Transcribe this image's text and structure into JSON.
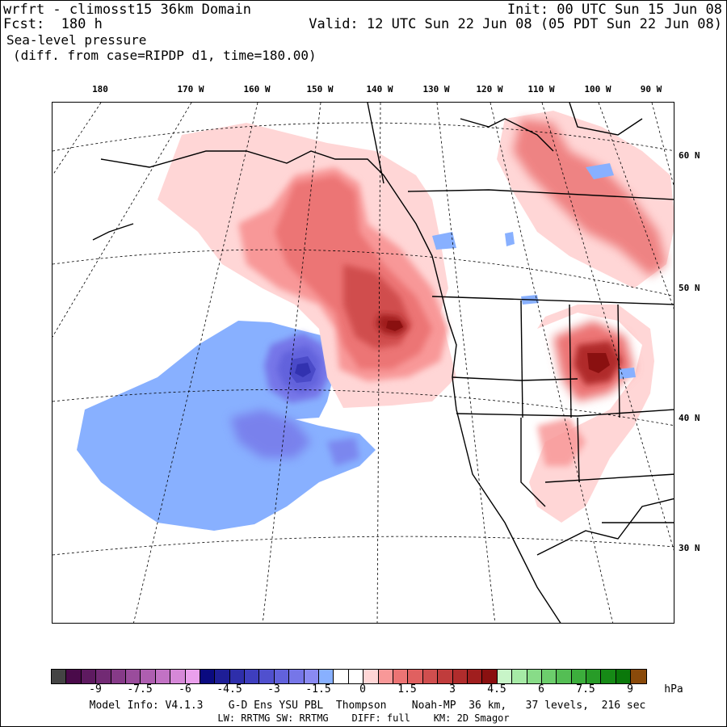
{
  "header": {
    "model_title": "wrfrt - climosst15 36km Domain",
    "init": "Init: 00 UTC Sun 15 Jun 08",
    "fcst": "Fcst:  180 h",
    "valid": "Valid: 12 UTC Sun 22 Jun 08 (05 PDT Sun 22 Jun 08)",
    "field": "Sea-level pressure",
    "diff_note": "(diff. from case=RIPDP d1, time=180.00)"
  },
  "map": {
    "lon_labels": [
      "180",
      "170 W",
      "160 W",
      "150 W",
      "140 W",
      "130 W",
      "120 W",
      "110 W",
      "100 W",
      "90 W"
    ],
    "lat_labels": [
      "60 N",
      "50 N",
      "40 N",
      "30 N"
    ],
    "anomaly_regions": [
      {
        "name": "negative anomaly center NE Pacific",
        "value": -6,
        "units": "hPa"
      },
      {
        "name": "positive anomaly center off Washington coast",
        "value": 4.5,
        "units": "hPa"
      },
      {
        "name": "positive anomaly center northern Rockies",
        "value": 4.5,
        "units": "hPa"
      }
    ]
  },
  "colorbar": {
    "units": "hPa",
    "tick_labels": [
      "-9",
      "-7.5",
      "-6",
      "-4.5",
      "-3",
      "-1.5",
      "0",
      "1.5",
      "3",
      "4.5",
      "6",
      "7.5",
      "9"
    ],
    "colors": [
      "#444444",
      "#4a0a4a",
      "#5e1a60",
      "#722a74",
      "#863a88",
      "#9a4c9c",
      "#ae5eb0",
      "#c272c4",
      "#d688d8",
      "#eaa0ec",
      "#0a0a80",
      "#1e1e96",
      "#2e2eaa",
      "#3e3ebe",
      "#5050ce",
      "#6262dc",
      "#7676e8",
      "#8a8af2",
      "#88b0ff",
      "#ffffff",
      "#ffffff",
      "#ffd6d6",
      "#f89898",
      "#ec7474",
      "#e06060",
      "#d04e4e",
      "#c03c3c",
      "#b02c2c",
      "#a01e1e",
      "#8a1010",
      "#c8f5c8",
      "#a6eaa6",
      "#88dc88",
      "#6cce6c",
      "#54be54",
      "#3cae3c",
      "#289c28",
      "#168a16",
      "#0a780a",
      "#8a4a0a"
    ]
  },
  "footer": {
    "line1": "Model Info: V4.1.3    G-D Ens YSU PBL  Thompson    Noah-MP  36 km,   37 levels,  216 sec",
    "line2": "LW: RRTMG SW: RRTMG    DIFF: full    KM: 2D Smagor"
  }
}
